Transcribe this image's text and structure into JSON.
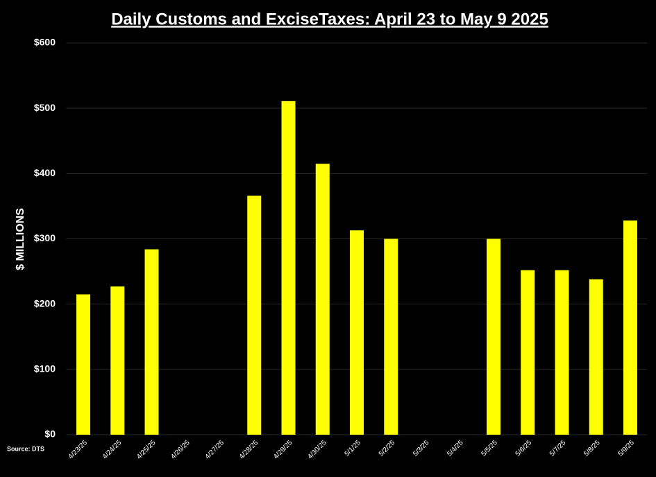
{
  "chart_data": {
    "type": "bar",
    "title": "Daily Customs and ExciseTaxes: April 23 to May 9 2025",
    "y_label": "$ MILLIONS",
    "source": "Source:  DTS",
    "categories": [
      "4/23/25",
      "4/24/25",
      "4/25/25",
      "4/26/25",
      "4/27/25",
      "4/28/25",
      "4/29/25",
      "4/30/25",
      "5/1/25",
      "5/2/25",
      "5/3/25",
      "5/4/25",
      "5/5/25",
      "5/6/25",
      "5/7/25",
      "5/8/25",
      "5/9/25"
    ],
    "values": [
      215,
      227,
      284,
      null,
      null,
      366,
      511,
      415,
      313,
      300,
      null,
      null,
      300,
      252,
      252,
      238,
      328
    ],
    "color": "#ffff00",
    "ylim": [
      0,
      600
    ],
    "yticks": [
      {
        "value": 0,
        "label": "$0"
      },
      {
        "value": 100,
        "label": "$100"
      },
      {
        "value": 200,
        "label": "$200"
      },
      {
        "value": 300,
        "label": "$300"
      },
      {
        "value": 400,
        "label": "$400"
      },
      {
        "value": 500,
        "label": "$500"
      },
      {
        "value": 600,
        "label": "$600"
      }
    ],
    "grid": true
  }
}
